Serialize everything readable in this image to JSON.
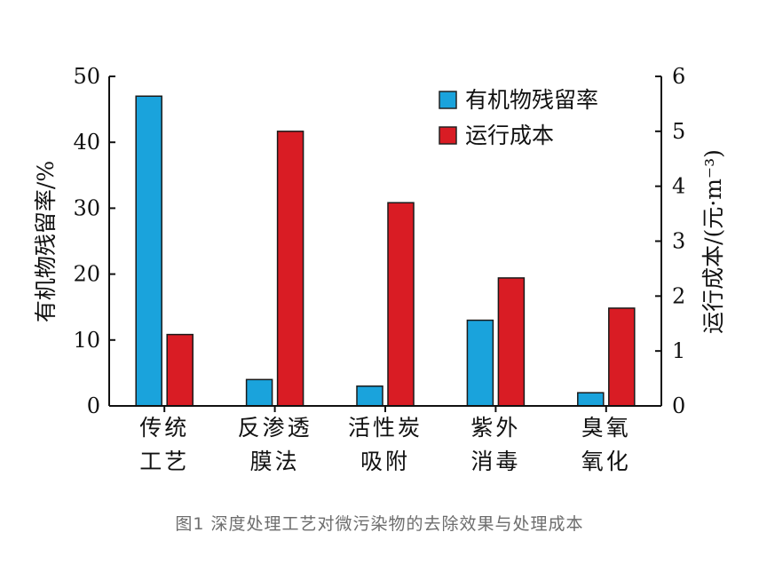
{
  "chart_data": {
    "type": "bar",
    "categories": [
      [
        "传统",
        "工艺"
      ],
      [
        "反渗透",
        "膜法"
      ],
      [
        "活性炭",
        "吸附"
      ],
      [
        "紫外",
        "消毒"
      ],
      [
        "臭氧",
        "氧化"
      ]
    ],
    "series": [
      {
        "name": "有机物残留率",
        "axis": "left",
        "color": "#1aa3dc",
        "values": [
          47,
          4,
          3,
          13,
          2
        ]
      },
      {
        "name": "运行成本",
        "axis": "right",
        "color": "#d91c24",
        "values": [
          1.3,
          5.0,
          3.7,
          2.33,
          1.78
        ]
      }
    ],
    "ylabel": "有机物残留率/%",
    "ylabel_right": "运行成本/(元·m⁻³)",
    "ylim": [
      0,
      50
    ],
    "ylim_right": [
      0,
      6
    ],
    "yticks": [
      "0",
      "10",
      "20",
      "30",
      "40",
      "50"
    ],
    "yticks_right": [
      "0",
      "1",
      "2",
      "3",
      "4",
      "5",
      "6"
    ],
    "legend_position": "top-right",
    "grid": false
  },
  "caption": "图1   深度处理工艺对微污染物的去除效果与处理成本"
}
